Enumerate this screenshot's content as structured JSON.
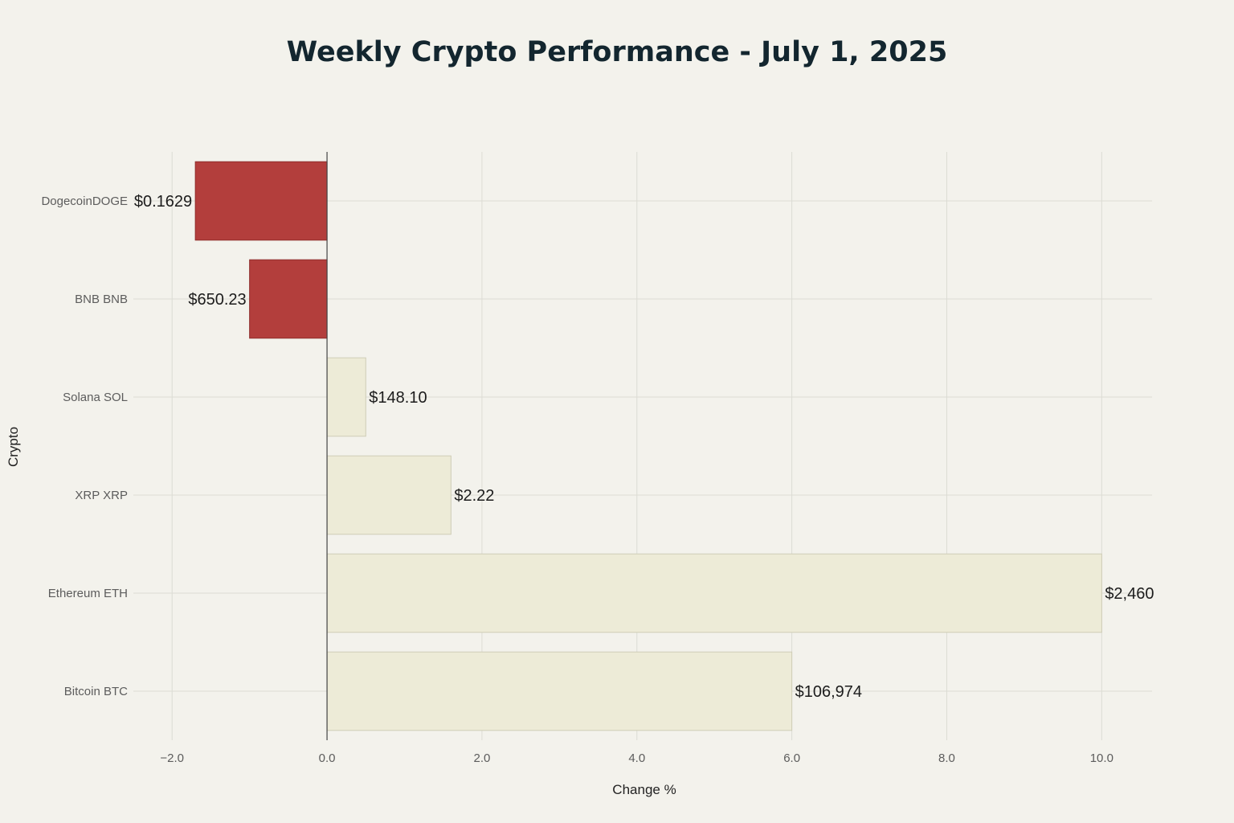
{
  "chart_data": {
    "type": "bar",
    "orientation": "horizontal",
    "title": "Weekly Crypto Performance - July 1, 2025",
    "xlabel": "Change %",
    "ylabel": "Crypto",
    "xlim": [
      -2.5,
      10.65
    ],
    "xticks": [
      {
        "value": -2,
        "label": "−2.0"
      },
      {
        "value": 0,
        "label": "0.0"
      },
      {
        "value": 2,
        "label": "2.0"
      },
      {
        "value": 4,
        "label": "4.0"
      },
      {
        "value": 6,
        "label": "6.0"
      },
      {
        "value": 8,
        "label": "8.0"
      },
      {
        "value": 10,
        "label": "10.0"
      }
    ],
    "grid": true,
    "categories": [
      "DogecoinDOGE",
      "BNB BNB",
      "Solana SOL",
      "XRP XRP",
      "Ethereum ETH",
      "Bitcoin BTC"
    ],
    "values": [
      -1.7,
      -1.0,
      0.5,
      1.6,
      10.0,
      6.0
    ],
    "data_labels": [
      "$0.1629",
      "$650.23",
      "$148.10",
      "$2.22",
      "$2,460",
      "$106,974"
    ],
    "colors": {
      "negative_fill": "#b33e3c",
      "negative_stroke": "#8f2d2b",
      "positive_fill": "#edebd7",
      "positive_stroke": "#cfcdb6",
      "grid": "#dcdcd4",
      "zero_line": "#444444"
    }
  }
}
